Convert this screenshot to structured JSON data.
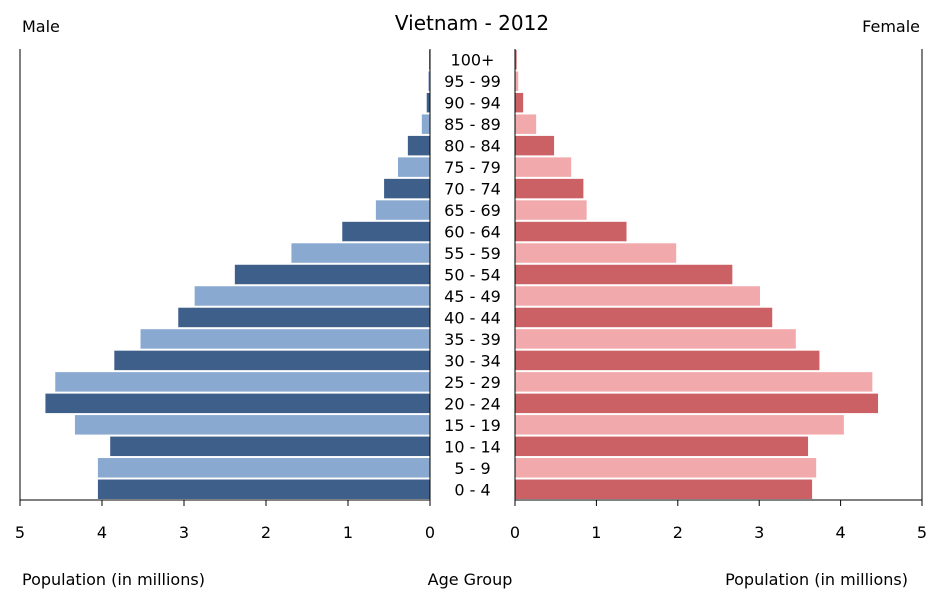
{
  "chart_data": {
    "type": "bar",
    "title": "Vietnam - 2012",
    "left_label": "Male",
    "right_label": "Female",
    "center_label": "Age Group",
    "xlabel_left": "Population (in millions)",
    "xlabel_right": "Population (in millions)",
    "xlim": [
      0,
      5
    ],
    "ticks": [
      "5",
      "4",
      "3",
      "2",
      "1",
      "0",
      "0",
      "1",
      "2",
      "3",
      "4",
      "5"
    ],
    "categories": [
      "100+",
      "95 - 99",
      "90 - 94",
      "85 - 89",
      "80 - 84",
      "75 - 79",
      "70 - 74",
      "65 - 69",
      "60 - 64",
      "55 - 59",
      "50 - 54",
      "45 - 49",
      "40 - 44",
      "35 - 39",
      "30 - 34",
      "25 - 29",
      "20 - 24",
      "15 - 19",
      "10 - 14",
      "5 - 9",
      "0 - 4"
    ],
    "series": [
      {
        "values": [
          0.01,
          0.02,
          0.04,
          0.1,
          0.27,
          0.39,
          0.56,
          0.66,
          1.07,
          1.69,
          2.38,
          2.87,
          3.07,
          3.53,
          3.85,
          4.57,
          4.69,
          4.33,
          3.9,
          4.05,
          4.05
        ]
      },
      {
        "values": [
          0.02,
          0.04,
          0.1,
          0.26,
          0.48,
          0.69,
          0.84,
          0.88,
          1.37,
          1.98,
          2.67,
          3.01,
          3.16,
          3.45,
          3.74,
          4.39,
          4.46,
          4.04,
          3.6,
          3.7,
          3.65
        ]
      }
    ],
    "colors": {
      "male_dark": "#3f5f8b",
      "male_light": "#89a9d1",
      "female_dark": "#cc6165",
      "female_light": "#f2a9ab"
    }
  }
}
